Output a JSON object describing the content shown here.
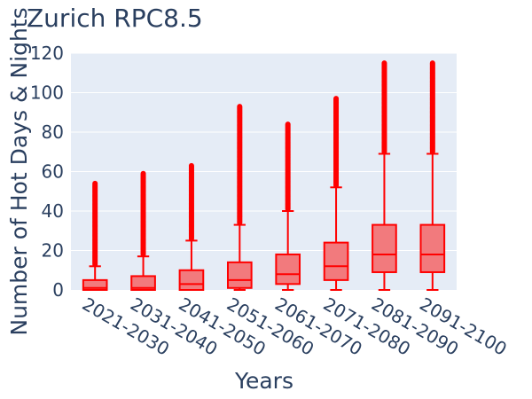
{
  "chart_data": {
    "type": "box",
    "title": "Zurich RPC8.5",
    "xlabel": "Years",
    "ylabel": "Number of Hot Days & Nights",
    "ylim": [
      0,
      120
    ],
    "yticks": [
      0,
      20,
      40,
      60,
      80,
      100,
      120
    ],
    "grid": true,
    "legend": "none",
    "colors": {
      "box_line": "#ff0000",
      "box_fill": "#f27a7d",
      "outlier": "#ff0000",
      "plot_bg": "#e5ecf6",
      "grid": "#ffffff",
      "text": "#2a3f5f"
    },
    "categories": [
      "2021-2030",
      "2031-2040",
      "2041-2050",
      "2051-2060",
      "2061-2070",
      "2071-2080",
      "2081-2090",
      "2091-2100"
    ],
    "boxes": [
      {
        "category": "2021-2030",
        "min": 0,
        "q1": 0,
        "median": 1,
        "q3": 5,
        "upper_fence": 12,
        "outliers_from": 13,
        "max": 54
      },
      {
        "category": "2031-2040",
        "min": 0,
        "q1": 0,
        "median": 1,
        "q3": 7,
        "upper_fence": 17,
        "outliers_from": 18,
        "max": 59
      },
      {
        "category": "2041-2050",
        "min": 0,
        "q1": 0,
        "median": 3,
        "q3": 10,
        "upper_fence": 25,
        "outliers_from": 26,
        "max": 63
      },
      {
        "category": "2051-2060",
        "min": 0,
        "q1": 1,
        "median": 5,
        "q3": 14,
        "upper_fence": 33,
        "outliers_from": 34,
        "max": 93
      },
      {
        "category": "2061-2070",
        "min": 0,
        "q1": 3,
        "median": 8,
        "q3": 18,
        "upper_fence": 40,
        "outliers_from": 41,
        "max": 84
      },
      {
        "category": "2071-2080",
        "min": 0,
        "q1": 5,
        "median": 12,
        "q3": 24,
        "upper_fence": 52,
        "outliers_from": 53,
        "max": 97
      },
      {
        "category": "2081-2090",
        "min": 0,
        "q1": 9,
        "median": 18,
        "q3": 33,
        "upper_fence": 69,
        "outliers_from": 70,
        "max": 115
      },
      {
        "category": "2091-2100",
        "min": 0,
        "q1": 9,
        "median": 18,
        "q3": 33,
        "upper_fence": 69,
        "outliers_from": 70,
        "max": 115
      }
    ]
  }
}
